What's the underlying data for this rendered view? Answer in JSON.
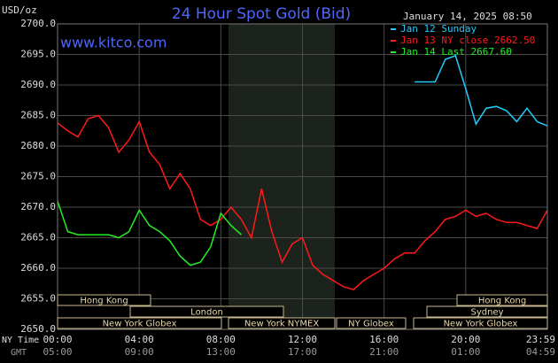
{
  "chart_data": {
    "type": "line",
    "title": "24 Hour Spot Gold (Bid)",
    "unit_label": "USD/oz",
    "timestamp": "January 14, 2025 08:50",
    "source": "www.kitco.com",
    "x_row_labels": [
      "NY Time",
      "GMT"
    ],
    "x": [
      0,
      0.5,
      1,
      1.5,
      2,
      2.5,
      3,
      3.5,
      4,
      4.5,
      5,
      5.5,
      6,
      6.5,
      7,
      7.5,
      8,
      8.5,
      9,
      9.5,
      10,
      10.5,
      11,
      11.5,
      12,
      12.5,
      13,
      13.5,
      14,
      14.5,
      15,
      15.5,
      16,
      16.5,
      17,
      17.5,
      18,
      18.5,
      19,
      19.5,
      20,
      20.5,
      21,
      21.5,
      22,
      22.5,
      23,
      23.5,
      24
    ],
    "series": [
      {
        "name": "Jan 12 Sunday",
        "color": "#22ccff",
        "values": [
          null,
          null,
          null,
          null,
          null,
          null,
          null,
          null,
          null,
          null,
          null,
          null,
          null,
          null,
          null,
          null,
          null,
          null,
          null,
          null,
          null,
          null,
          null,
          null,
          null,
          null,
          null,
          null,
          null,
          null,
          null,
          null,
          null,
          null,
          null,
          2690.5,
          2690.5,
          2690.5,
          2694.2,
          2694.8,
          2689.4,
          2683.6,
          2686.2,
          2686.5,
          2685.8,
          2684,
          2686.2,
          2684,
          2683.3
        ]
      },
      {
        "name": "Jan 13 NY close 2662.50",
        "color": "#ff1a1a",
        "values": [
          2683.8,
          2682.5,
          2681.5,
          2684.5,
          2685,
          2683,
          2679,
          2681,
          2684,
          2679,
          2677,
          2673,
          2675.5,
          2673,
          2668,
          2667,
          2668,
          2670,
          2668,
          2665,
          2673,
          2666,
          2661,
          2664,
          2665,
          2660.5,
          2659,
          2658,
          2657,
          2656.5,
          2658,
          2659,
          2660,
          2661.5,
          2662.5,
          2662.5,
          2664.5,
          2666,
          2668,
          2668.5,
          2669.5,
          2668.5,
          2669,
          2668,
          2667.5,
          2667.5,
          2667,
          2666.5,
          2669.5
        ]
      },
      {
        "name": "Jan 14 Last 2667.60",
        "color": "#22ee22",
        "values": [
          2671,
          2666,
          2665.5,
          2665.5,
          2665.5,
          2665.5,
          2665,
          2666,
          2669.5,
          2667,
          2666,
          2664.5,
          2662,
          2660.5,
          2661,
          2663.5,
          2669,
          2667,
          2665.5,
          null,
          null,
          null,
          null,
          null,
          null,
          null,
          null,
          null,
          null,
          null,
          null,
          null,
          null,
          null,
          null,
          null,
          null,
          null,
          null,
          null,
          null,
          null,
          null,
          null,
          null,
          null,
          null,
          null,
          null
        ]
      }
    ],
    "xlim": [
      0,
      24
    ],
    "xticks": [
      {
        "value": 0,
        "label": "00:00"
      },
      {
        "value": 4,
        "label": "04:00"
      },
      {
        "value": 8,
        "label": "08:00"
      },
      {
        "value": 12,
        "label": "12:00"
      },
      {
        "value": 16,
        "label": "16:00"
      },
      {
        "value": 20,
        "label": "20:00"
      },
      {
        "value": 24,
        "label": "23:59"
      }
    ],
    "x2ticks": [
      {
        "value": 0,
        "label": "05:00"
      },
      {
        "value": 4,
        "label": "09:00"
      },
      {
        "value": 8,
        "label": "13:00"
      },
      {
        "value": 12,
        "label": "17:00"
      },
      {
        "value": 16,
        "label": "21:00"
      },
      {
        "value": 20,
        "label": "01:00"
      },
      {
        "value": 24,
        "label": "04:59"
      }
    ],
    "ylim": [
      2650,
      2700
    ],
    "yticks": [
      {
        "value": 2650,
        "label": "2650.0"
      },
      {
        "value": 2655,
        "label": "2655.0"
      },
      {
        "value": 2660,
        "label": "2660.0"
      },
      {
        "value": 2665,
        "label": "2665.0"
      },
      {
        "value": 2670,
        "label": "2670.0"
      },
      {
        "value": 2675,
        "label": "2675.0"
      },
      {
        "value": 2680,
        "label": "2680.0"
      },
      {
        "value": 2685,
        "label": "2685.0"
      },
      {
        "value": 2690,
        "label": "2690.0"
      },
      {
        "value": 2695,
        "label": "2695.0"
      },
      {
        "value": 2700,
        "label": "2700.0"
      }
    ],
    "grid": true,
    "sessions": [
      "Hong Kong",
      "London",
      "New York Globex",
      "New York NYMEX",
      "NY Globex",
      "Hong Kong",
      "Sydney",
      "New York Globex"
    ]
  }
}
